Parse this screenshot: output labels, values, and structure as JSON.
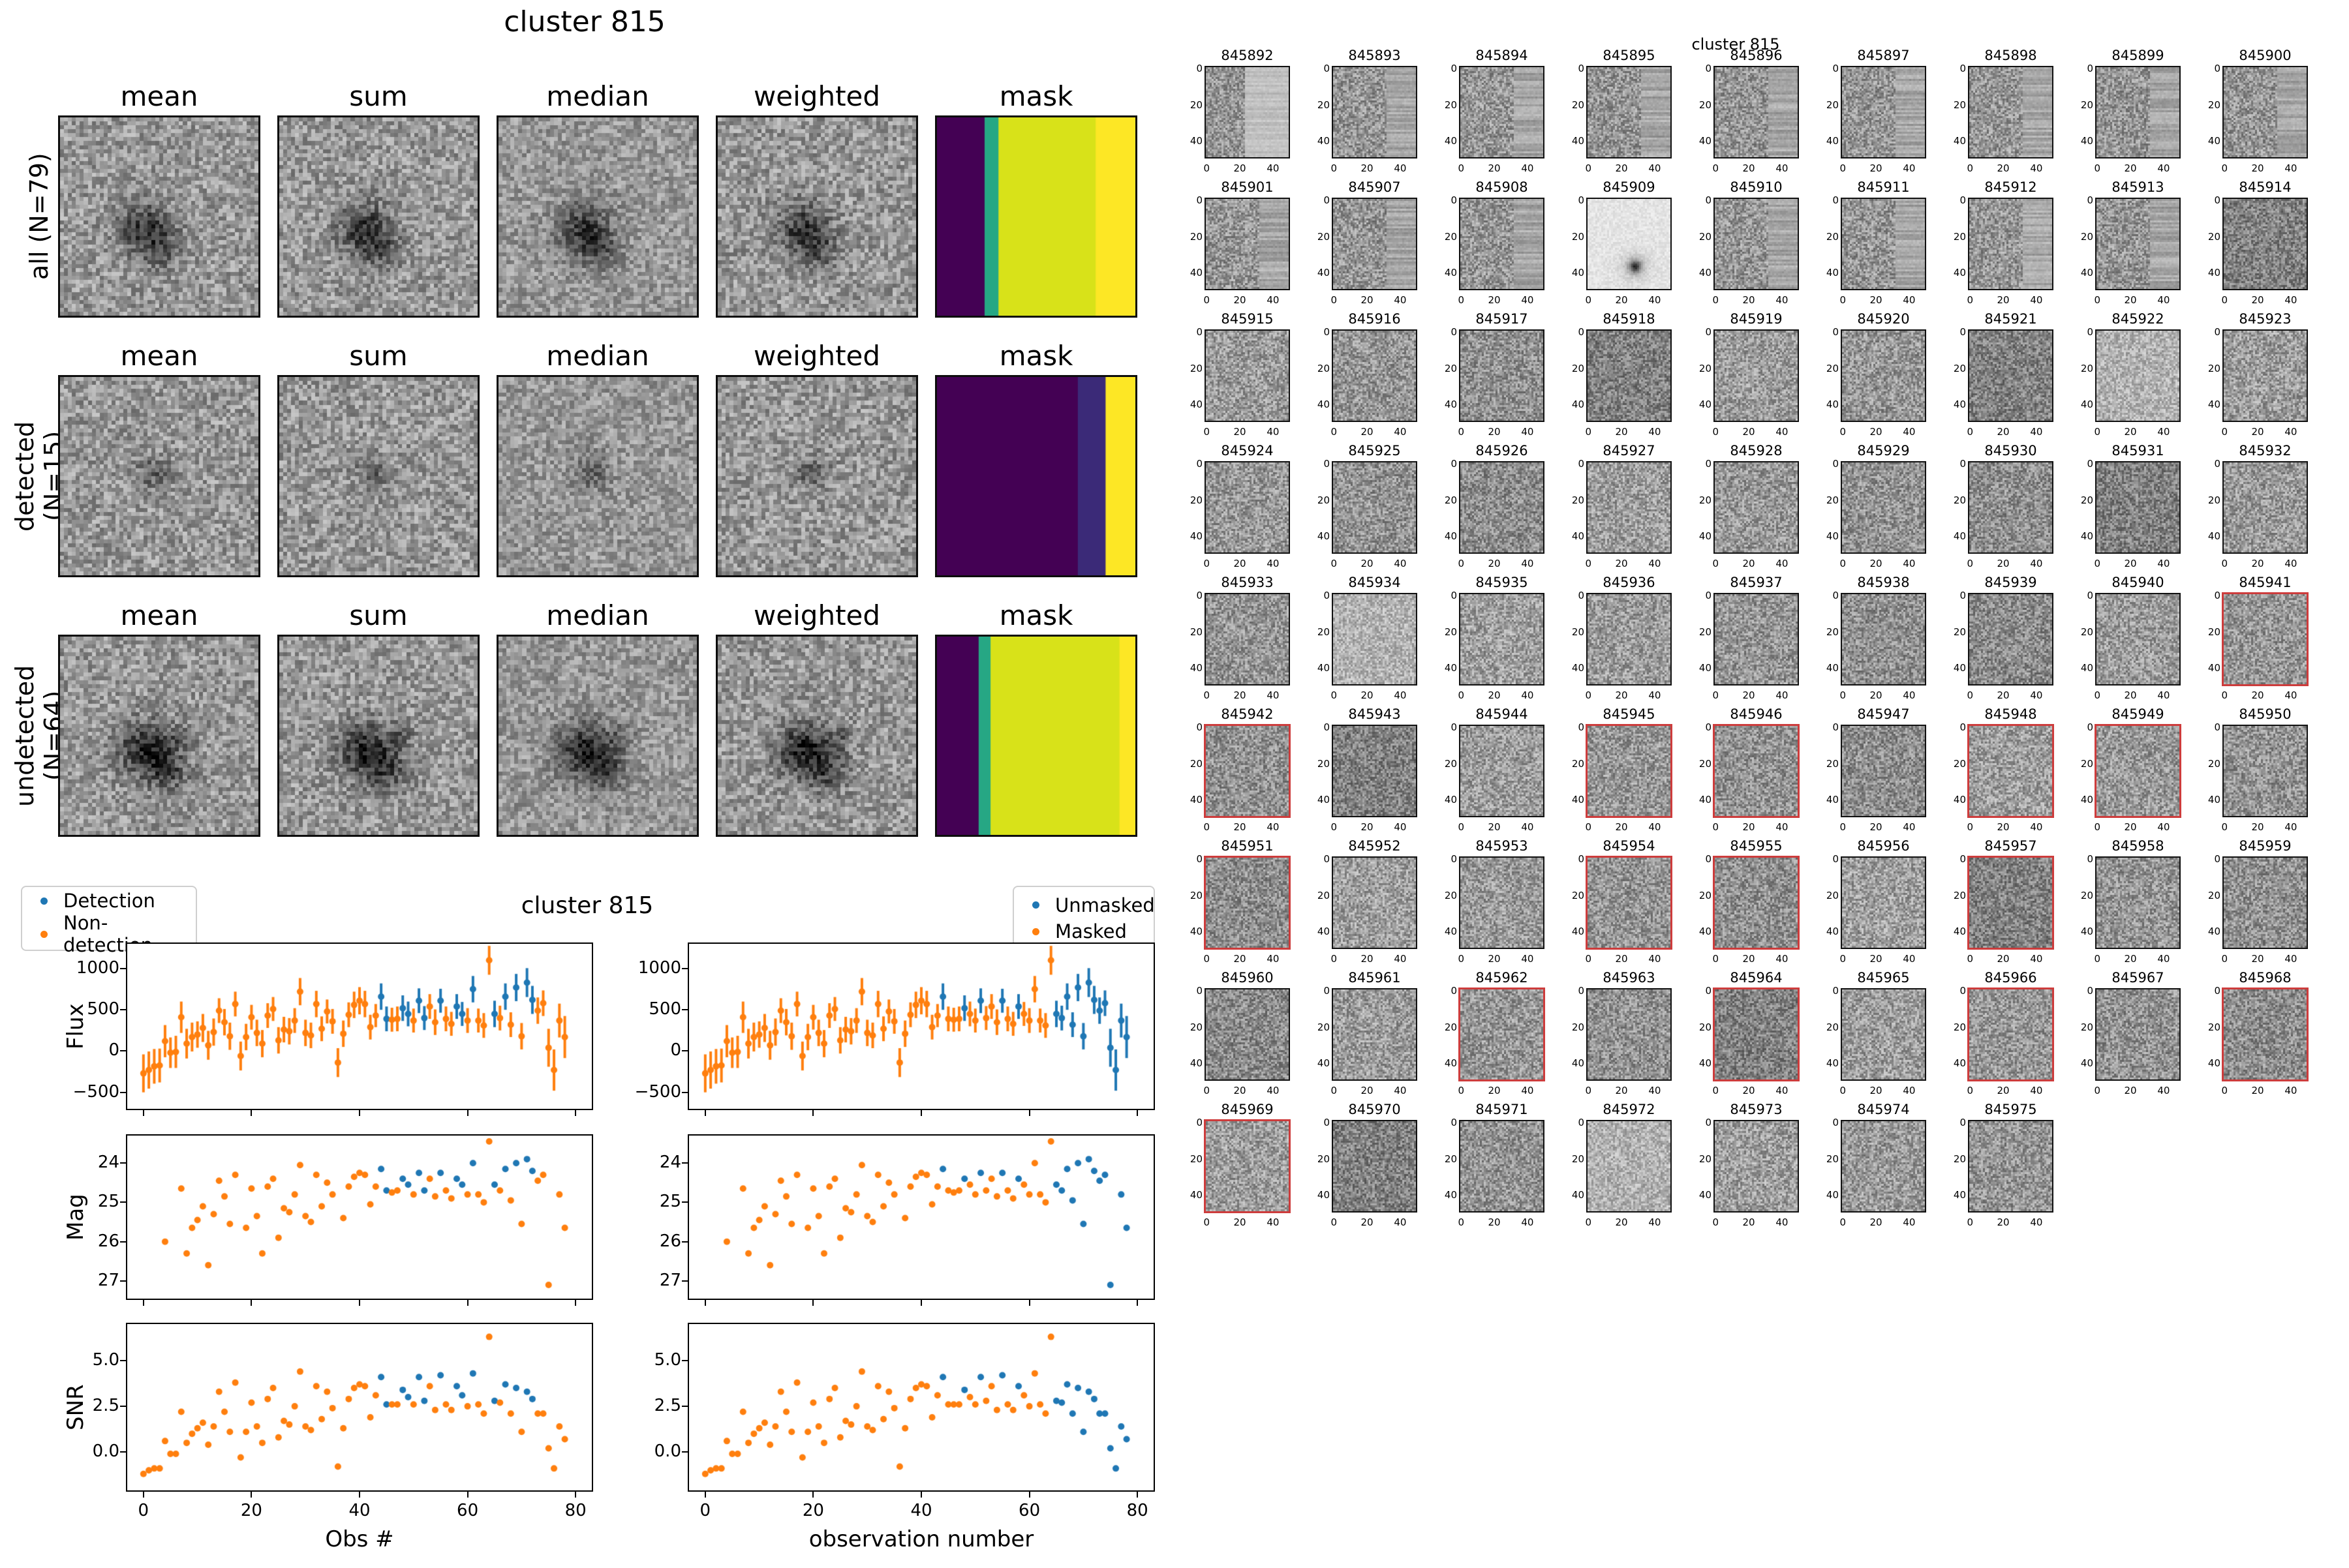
{
  "left_figure": {
    "title": "cluster 815",
    "columns": [
      "mean",
      "sum",
      "median",
      "weighted",
      "mask"
    ],
    "rows": [
      {
        "label": "all (N=79)",
        "mask_stripes": [
          [
            0,
            0.24,
            "#440154"
          ],
          [
            0.24,
            0.31,
            "#26a784"
          ],
          [
            0.31,
            0.8,
            "#d8e219"
          ],
          [
            0.8,
            1,
            "#fde725"
          ]
        ]
      },
      {
        "label": "detected (N=15)",
        "mask_stripes": [
          [
            0,
            0.71,
            "#440154"
          ],
          [
            0.71,
            0.85,
            "#3b2a78"
          ],
          [
            0.85,
            1,
            "#fde725"
          ]
        ]
      },
      {
        "label": "undetected (N=64)",
        "mask_stripes": [
          [
            0,
            0.21,
            "#440154"
          ],
          [
            0.21,
            0.27,
            "#26a784"
          ],
          [
            0.27,
            0.92,
            "#d8e219"
          ],
          [
            0.92,
            1,
            "#fde725"
          ]
        ]
      }
    ]
  },
  "timeseries_figure": {
    "title": "cluster 815",
    "xlabel_left": "Obs #",
    "xlabel_right": "observation number",
    "legend_left": [
      {
        "label": "Detection",
        "color": "#1f77b4"
      },
      {
        "label": "Non-detection",
        "color": "#ff7f0e"
      }
    ],
    "legend_right": [
      {
        "label": "Unmasked",
        "color": "#1f77b4"
      },
      {
        "label": "Masked",
        "color": "#ff7f0e"
      }
    ],
    "chart_data": {
      "type": "scatter",
      "title": "cluster 815",
      "legend_position": "top",
      "grid": false,
      "xlim": [
        -3,
        83
      ],
      "xticks": [
        {
          "v": 0,
          "l": "0"
        },
        {
          "v": 20,
          "l": "20"
        },
        {
          "v": 40,
          "l": "40"
        },
        {
          "v": 60,
          "l": "60"
        },
        {
          "v": 80,
          "l": "80"
        }
      ],
      "rows": [
        {
          "ylabel": "Flux",
          "ylim": [
            -700,
            1300
          ],
          "yticks": [
            {
              "v": 1000,
              "l": "1000"
            },
            {
              "v": 500,
              "l": "500"
            },
            {
              "v": 0,
              "l": "0"
            },
            {
              "v": -500,
              "l": "−500"
            }
          ],
          "markers": "errorbar"
        },
        {
          "ylabel": "Mag",
          "ylim": [
            27.45,
            23.3
          ],
          "yticks": [
            {
              "v": 24,
              "l": "24"
            },
            {
              "v": 25,
              "l": "25"
            },
            {
              "v": 26,
              "l": "26"
            },
            {
              "v": 27,
              "l": "27"
            }
          ],
          "markers": "dot"
        },
        {
          "ylabel": "SNR",
          "ylim": [
            -2.1,
            7.0
          ],
          "yticks": [
            {
              "v": 5.0,
              "l": "5.0"
            },
            {
              "v": 2.5,
              "l": "2.5"
            },
            {
              "v": 0.0,
              "l": "0.0"
            }
          ],
          "markers": "dot"
        }
      ],
      "x": [
        0,
        1,
        2,
        3,
        4,
        5,
        6,
        7,
        8,
        9,
        10,
        11,
        12,
        13,
        14,
        15,
        16,
        17,
        18,
        19,
        20,
        21,
        22,
        23,
        24,
        25,
        26,
        27,
        28,
        29,
        30,
        31,
        32,
        33,
        34,
        35,
        36,
        37,
        38,
        39,
        40,
        41,
        42,
        43,
        44,
        45,
        46,
        47,
        48,
        49,
        50,
        51,
        52,
        53,
        54,
        55,
        56,
        57,
        58,
        59,
        60,
        61,
        62,
        63,
        64,
        65,
        66,
        67,
        68,
        69,
        70,
        71,
        72,
        73,
        74,
        75,
        76,
        77,
        78
      ],
      "flux": [
        -270,
        -230,
        -185,
        -175,
        120,
        -20,
        -10,
        410,
        90,
        170,
        200,
        280,
        70,
        230,
        490,
        350,
        180,
        570,
        -60,
        170,
        410,
        220,
        90,
        430,
        510,
        130,
        260,
        240,
        370,
        720,
        220,
        190,
        570,
        270,
        480,
        360,
        -140,
        210,
        440,
        560,
        610,
        570,
        290,
        430,
        660,
        390,
        380,
        390,
        520,
        450,
        370,
        610,
        400,
        540,
        350,
        610,
        390,
        330,
        540,
        450,
        370,
        750,
        370,
        310,
        1100,
        450,
        400,
        660,
        320,
        770,
        180,
        830,
        620,
        490,
        580,
        40,
        -230,
        370,
        170
      ],
      "flux_err": [
        230,
        225,
        210,
        205,
        195,
        185,
        195,
        190,
        180,
        175,
        160,
        170,
        175,
        165,
        150,
        160,
        165,
        150,
        175,
        160,
        150,
        160,
        165,
        150,
        145,
        160,
        155,
        160,
        150,
        165,
        160,
        155,
        160,
        150,
        145,
        150,
        175,
        160,
        150,
        160,
        165,
        160,
        150,
        140,
        160,
        150,
        145,
        150,
        155,
        150,
        145,
        150,
        145,
        150,
        155,
        145,
        150,
        145,
        150,
        145,
        150,
        160,
        145,
        150,
        175,
        160,
        150,
        160,
        150,
        165,
        160,
        175,
        170,
        160,
        155,
        230,
        250,
        205,
        255
      ],
      "mag": [
        null,
        null,
        null,
        null,
        26.0,
        null,
        null,
        24.65,
        26.3,
        25.65,
        25.45,
        25.1,
        26.6,
        25.3,
        24.45,
        24.85,
        25.55,
        24.3,
        null,
        25.65,
        24.65,
        25.35,
        26.3,
        24.6,
        24.4,
        25.9,
        25.15,
        25.25,
        24.8,
        24.05,
        25.35,
        25.5,
        24.3,
        25.1,
        24.5,
        24.8,
        null,
        25.4,
        24.6,
        24.35,
        24.25,
        24.3,
        25.05,
        24.6,
        24.15,
        24.7,
        24.75,
        24.7,
        24.4,
        24.55,
        24.8,
        24.25,
        24.7,
        24.4,
        24.85,
        24.25,
        24.7,
        24.9,
        24.4,
        24.55,
        24.8,
        24.0,
        24.8,
        25.0,
        23.45,
        24.55,
        24.7,
        24.15,
        24.95,
        24.0,
        25.55,
        23.9,
        24.2,
        24.45,
        24.3,
        27.1,
        null,
        24.8,
        25.65
      ],
      "snr": [
        -1.2,
        -1.0,
        -0.9,
        -0.9,
        0.6,
        -0.1,
        -0.1,
        2.2,
        0.5,
        1.0,
        1.3,
        1.6,
        0.4,
        1.4,
        3.3,
        2.2,
        1.1,
        3.8,
        -0.3,
        1.1,
        2.7,
        1.4,
        0.5,
        2.9,
        3.5,
        0.8,
        1.7,
        1.5,
        2.5,
        4.4,
        1.4,
        1.2,
        3.6,
        1.8,
        3.3,
        2.4,
        -0.8,
        1.3,
        2.9,
        3.5,
        3.7,
        3.6,
        1.9,
        3.1,
        4.1,
        2.6,
        2.6,
        2.6,
        3.4,
        3.0,
        2.6,
        4.1,
        2.8,
        3.6,
        2.3,
        4.2,
        2.6,
        2.3,
        3.6,
        3.1,
        2.5,
        4.3,
        2.6,
        2.1,
        6.3,
        2.8,
        2.7,
        3.7,
        2.1,
        3.5,
        1.1,
        3.3,
        2.9,
        2.1,
        2.1,
        0.2,
        -0.9,
        1.4,
        0.7
      ],
      "detection_blue_idx": [
        44,
        45,
        48,
        49,
        51,
        52,
        55,
        58,
        59,
        61,
        65,
        67,
        69,
        71,
        72
      ],
      "unmasked_blue_idx": [
        44,
        48,
        51,
        55,
        58,
        65,
        66,
        67,
        68,
        69,
        70,
        71,
        72,
        73,
        74,
        75,
        76,
        77,
        78
      ],
      "colors": {
        "blue": "#1f77b4",
        "orange": "#ff7f0e"
      }
    }
  },
  "right_grid": {
    "suptitle": "cluster 815",
    "xticks": [
      "0",
      "20",
      "40"
    ],
    "yticks": [
      "0",
      "20",
      "40"
    ],
    "masked_border_color": "#cd3c3c",
    "panels": [
      [
        "845892",
        0,
        "right_light"
      ],
      [
        "845893",
        0,
        "streak"
      ],
      [
        "845894",
        0,
        "streak"
      ],
      [
        "845895",
        0,
        "streak"
      ],
      [
        "845896",
        0,
        "streak"
      ],
      [
        "845897",
        0,
        "streak"
      ],
      [
        "845898",
        0,
        "streak"
      ],
      [
        "845899",
        0,
        "streak"
      ],
      [
        "845900",
        0,
        "streak"
      ],
      [
        "845901",
        0,
        "streak"
      ],
      [
        "845907",
        0,
        "streak"
      ],
      [
        "845908",
        0,
        "streak"
      ],
      [
        "845909",
        0,
        "light_spot"
      ],
      [
        "845910",
        0,
        "streak"
      ],
      [
        "845911",
        0,
        "streak"
      ],
      [
        "845912",
        0,
        "streak"
      ],
      [
        "845913",
        0,
        "streak"
      ],
      [
        "845914",
        0,
        "dark"
      ],
      [
        "845915",
        0,
        ""
      ],
      [
        "845916",
        0,
        ""
      ],
      [
        "845917",
        0,
        ""
      ],
      [
        "845918",
        0,
        "dark"
      ],
      [
        "845919",
        0,
        ""
      ],
      [
        "845920",
        0,
        ""
      ],
      [
        "845921",
        0,
        "dark"
      ],
      [
        "845922",
        0,
        "light"
      ],
      [
        "845923",
        0,
        ""
      ],
      [
        "845924",
        0,
        ""
      ],
      [
        "845925",
        0,
        ""
      ],
      [
        "845926",
        0,
        ""
      ],
      [
        "845927",
        0,
        ""
      ],
      [
        "845928",
        0,
        ""
      ],
      [
        "845929",
        0,
        ""
      ],
      [
        "845930",
        0,
        ""
      ],
      [
        "845931",
        0,
        "dark"
      ],
      [
        "845932",
        0,
        ""
      ],
      [
        "845933",
        0,
        ""
      ],
      [
        "845934",
        0,
        "light"
      ],
      [
        "845935",
        0,
        ""
      ],
      [
        "845936",
        0,
        ""
      ],
      [
        "845937",
        0,
        ""
      ],
      [
        "845938",
        0,
        ""
      ],
      [
        "845939",
        0,
        ""
      ],
      [
        "845940",
        0,
        ""
      ],
      [
        "845941",
        1,
        ""
      ],
      [
        "845942",
        1,
        ""
      ],
      [
        "845943",
        0,
        "dark"
      ],
      [
        "845944",
        0,
        ""
      ],
      [
        "845945",
        1,
        ""
      ],
      [
        "845946",
        1,
        ""
      ],
      [
        "845947",
        0,
        ""
      ],
      [
        "845948",
        1,
        ""
      ],
      [
        "845949",
        1,
        ""
      ],
      [
        "845950",
        0,
        ""
      ],
      [
        "845951",
        1,
        ""
      ],
      [
        "845952",
        0,
        ""
      ],
      [
        "845953",
        0,
        ""
      ],
      [
        "845954",
        1,
        ""
      ],
      [
        "845955",
        1,
        ""
      ],
      [
        "845956",
        0,
        ""
      ],
      [
        "845957",
        1,
        "dark"
      ],
      [
        "845958",
        0,
        ""
      ],
      [
        "845959",
        0,
        ""
      ],
      [
        "845960",
        0,
        ""
      ],
      [
        "845961",
        0,
        ""
      ],
      [
        "845962",
        1,
        ""
      ],
      [
        "845963",
        0,
        ""
      ],
      [
        "845964",
        1,
        "dark"
      ],
      [
        "845965",
        0,
        ""
      ],
      [
        "845966",
        1,
        ""
      ],
      [
        "845967",
        0,
        ""
      ],
      [
        "845968",
        1,
        ""
      ],
      [
        "845969",
        1,
        ""
      ],
      [
        "845970",
        0,
        "dark"
      ],
      [
        "845971",
        0,
        ""
      ],
      [
        "845972",
        0,
        "light"
      ],
      [
        "845973",
        0,
        ""
      ],
      [
        "845974",
        0,
        ""
      ],
      [
        "845975",
        0,
        ""
      ]
    ]
  }
}
